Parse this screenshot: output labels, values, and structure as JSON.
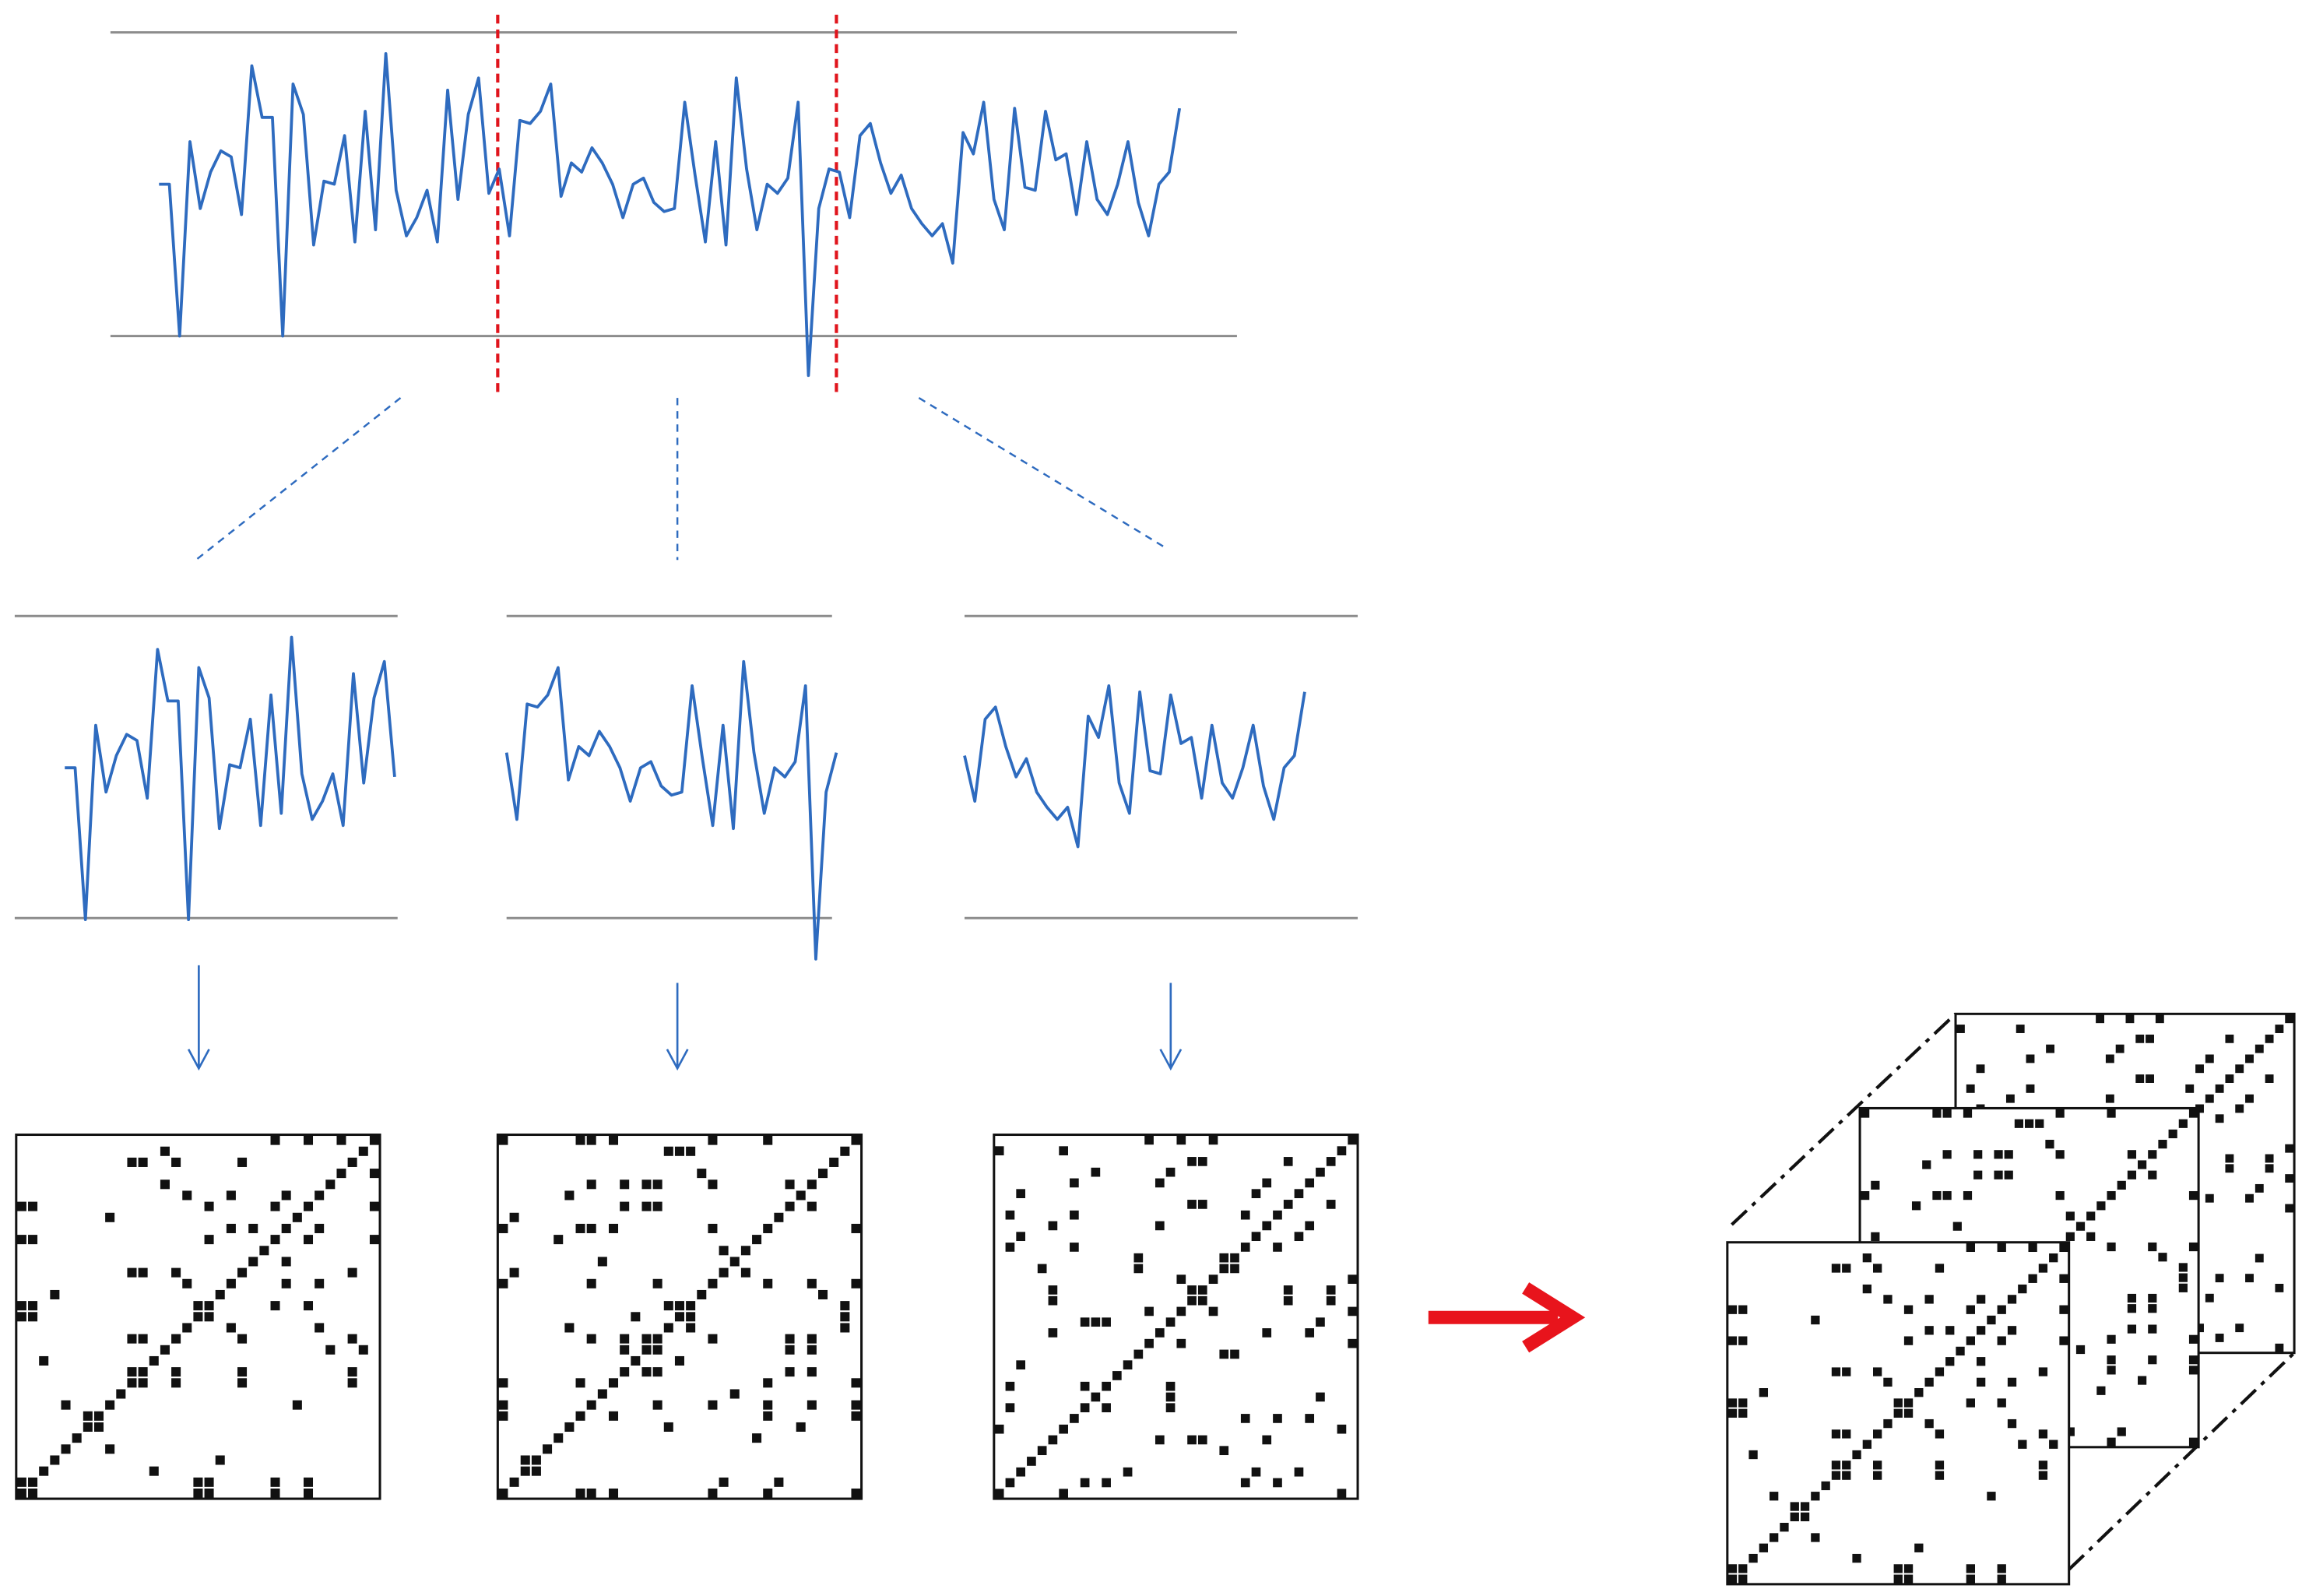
{
  "signal": {
    "values": [
      50,
      50,
      0,
      64,
      42,
      54,
      61,
      59,
      40,
      89,
      72,
      72,
      0,
      83,
      73,
      30,
      51,
      50,
      66,
      31,
      74,
      35,
      93,
      48,
      33,
      39,
      48,
      31,
      81,
      45,
      73,
      85,
      47,
      55,
      33,
      71,
      70,
      74,
      83,
      46,
      57,
      54,
      62,
      57,
      50,
      39,
      50,
      52,
      44,
      41,
      42,
      77,
      53,
      31,
      64,
      30,
      85,
      55,
      35,
      50,
      47,
      52,
      77,
      -13,
      42,
      55,
      54,
      39,
      66,
      70,
      57,
      47,
      53,
      42,
      37,
      33,
      37,
      24,
      67,
      60,
      77,
      45,
      35,
      75,
      49,
      48,
      74,
      58,
      60,
      40,
      64,
      45,
      40,
      50,
      64,
      44,
      33,
      50,
      54,
      75
    ]
  }
}
